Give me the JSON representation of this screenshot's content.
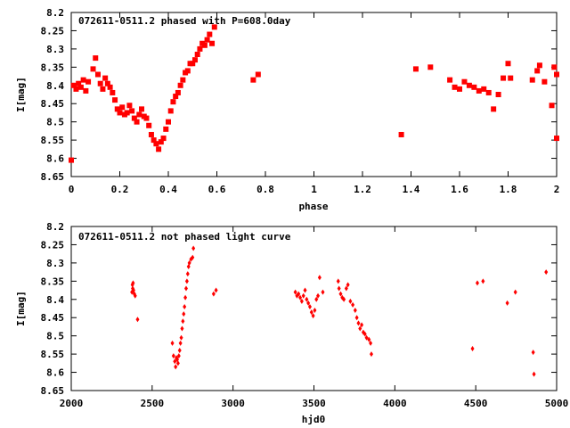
{
  "chart_data": [
    {
      "type": "scatter",
      "title": "072611-0511.2 phased with P=608.0day",
      "xlabel": "phase",
      "ylabel": "I[mag]",
      "xlim": [
        0,
        2
      ],
      "ylim": [
        8.65,
        8.2
      ],
      "y_inverted": true,
      "xticks": [
        "0",
        "0.2",
        "0.4",
        "0.6",
        "0.8",
        "1",
        "1.2",
        "1.4",
        "1.6",
        "1.8",
        "2"
      ],
      "yticks": [
        "8.2",
        "8.25",
        "8.3",
        "8.35",
        "8.4",
        "8.45",
        "8.5",
        "8.55",
        "8.6",
        "8.65"
      ],
      "marker": "filled-square",
      "color": "#ff0000",
      "grid": false,
      "points": [
        [
          0.0,
          8.605
        ],
        [
          0.01,
          8.4
        ],
        [
          0.02,
          8.41
        ],
        [
          0.03,
          8.395
        ],
        [
          0.04,
          8.405
        ],
        [
          0.05,
          8.385
        ],
        [
          0.06,
          8.415
        ],
        [
          0.07,
          8.39
        ],
        [
          0.09,
          8.355
        ],
        [
          0.1,
          8.325
        ],
        [
          0.11,
          8.37
        ],
        [
          0.12,
          8.395
        ],
        [
          0.13,
          8.41
        ],
        [
          0.14,
          8.38
        ],
        [
          0.15,
          8.395
        ],
        [
          0.16,
          8.405
        ],
        [
          0.17,
          8.42
        ],
        [
          0.18,
          8.44
        ],
        [
          0.19,
          8.465
        ],
        [
          0.2,
          8.475
        ],
        [
          0.21,
          8.46
        ],
        [
          0.22,
          8.48
        ],
        [
          0.23,
          8.475
        ],
        [
          0.24,
          8.455
        ],
        [
          0.25,
          8.47
        ],
        [
          0.26,
          8.49
        ],
        [
          0.27,
          8.5
        ],
        [
          0.28,
          8.48
        ],
        [
          0.29,
          8.465
        ],
        [
          0.3,
          8.485
        ],
        [
          0.31,
          8.49
        ],
        [
          0.32,
          8.51
        ],
        [
          0.33,
          8.535
        ],
        [
          0.34,
          8.55
        ],
        [
          0.35,
          8.56
        ],
        [
          0.36,
          8.575
        ],
        [
          0.37,
          8.555
        ],
        [
          0.38,
          8.545
        ],
        [
          0.39,
          8.52
        ],
        [
          0.4,
          8.5
        ],
        [
          0.41,
          8.47
        ],
        [
          0.42,
          8.445
        ],
        [
          0.43,
          8.43
        ],
        [
          0.44,
          8.42
        ],
        [
          0.45,
          8.4
        ],
        [
          0.46,
          8.385
        ],
        [
          0.47,
          8.365
        ],
        [
          0.48,
          8.36
        ],
        [
          0.49,
          8.34
        ],
        [
          0.5,
          8.34
        ],
        [
          0.51,
          8.33
        ],
        [
          0.52,
          8.315
        ],
        [
          0.53,
          8.3
        ],
        [
          0.54,
          8.285
        ],
        [
          0.55,
          8.29
        ],
        [
          0.56,
          8.275
        ],
        [
          0.57,
          8.26
        ],
        [
          0.58,
          8.285
        ],
        [
          0.59,
          8.24
        ],
        [
          0.75,
          8.385
        ],
        [
          0.77,
          8.37
        ],
        [
          1.36,
          8.535
        ],
        [
          1.42,
          8.355
        ],
        [
          1.48,
          8.35
        ],
        [
          1.56,
          8.385
        ],
        [
          1.58,
          8.405
        ],
        [
          1.6,
          8.41
        ],
        [
          1.62,
          8.39
        ],
        [
          1.64,
          8.4
        ],
        [
          1.66,
          8.405
        ],
        [
          1.68,
          8.415
        ],
        [
          1.7,
          8.41
        ],
        [
          1.72,
          8.42
        ],
        [
          1.74,
          8.465
        ],
        [
          1.76,
          8.425
        ],
        [
          1.78,
          8.38
        ],
        [
          1.8,
          8.34
        ],
        [
          1.81,
          8.38
        ],
        [
          1.9,
          8.385
        ],
        [
          1.92,
          8.36
        ],
        [
          1.93,
          8.345
        ],
        [
          1.95,
          8.39
        ],
        [
          1.98,
          8.455
        ],
        [
          1.99,
          8.35
        ],
        [
          2.0,
          8.545
        ],
        [
          2.0,
          8.37
        ]
      ]
    },
    {
      "type": "scatter",
      "title": "072611-0511.2 not phased light curve",
      "xlabel": "hjd0",
      "ylabel": "I[mag]",
      "xlim": [
        2000,
        5000
      ],
      "ylim": [
        8.65,
        8.2
      ],
      "y_inverted": true,
      "xticks": [
        "2000",
        "2500",
        "3000",
        "3500",
        "4000",
        "4500",
        "5000"
      ],
      "yticks": [
        "8.2",
        "8.25",
        "8.3",
        "8.35",
        "8.4",
        "8.45",
        "8.5",
        "8.55",
        "8.6",
        "8.65"
      ],
      "marker": "diamond",
      "color": "#ff0000",
      "grid": false,
      "points": [
        [
          2375,
          8.38
        ],
        [
          2378,
          8.36
        ],
        [
          2380,
          8.37
        ],
        [
          2382,
          8.355
        ],
        [
          2385,
          8.375
        ],
        [
          2390,
          8.385
        ],
        [
          2395,
          8.39
        ],
        [
          2410,
          8.455
        ],
        [
          2625,
          8.52
        ],
        [
          2632,
          8.555
        ],
        [
          2640,
          8.57
        ],
        [
          2645,
          8.585
        ],
        [
          2650,
          8.56
        ],
        [
          2655,
          8.565
        ],
        [
          2660,
          8.575
        ],
        [
          2665,
          8.555
        ],
        [
          2670,
          8.54
        ],
        [
          2675,
          8.52
        ],
        [
          2680,
          8.505
        ],
        [
          2685,
          8.48
        ],
        [
          2690,
          8.46
        ],
        [
          2695,
          8.44
        ],
        [
          2700,
          8.42
        ],
        [
          2705,
          8.395
        ],
        [
          2710,
          8.37
        ],
        [
          2715,
          8.35
        ],
        [
          2720,
          8.33
        ],
        [
          2725,
          8.31
        ],
        [
          2730,
          8.3
        ],
        [
          2740,
          8.29
        ],
        [
          2750,
          8.285
        ],
        [
          2755,
          8.26
        ],
        [
          2880,
          8.385
        ],
        [
          2895,
          8.375
        ],
        [
          3385,
          8.38
        ],
        [
          3395,
          8.39
        ],
        [
          3405,
          8.385
        ],
        [
          3415,
          8.395
        ],
        [
          3425,
          8.405
        ],
        [
          3435,
          8.39
        ],
        [
          3445,
          8.375
        ],
        [
          3455,
          8.4
        ],
        [
          3465,
          8.41
        ],
        [
          3475,
          8.42
        ],
        [
          3485,
          8.435
        ],
        [
          3495,
          8.445
        ],
        [
          3505,
          8.43
        ],
        [
          3515,
          8.4
        ],
        [
          3525,
          8.39
        ],
        [
          3535,
          8.34
        ],
        [
          3555,
          8.38
        ],
        [
          3650,
          8.35
        ],
        [
          3655,
          8.37
        ],
        [
          3665,
          8.385
        ],
        [
          3675,
          8.395
        ],
        [
          3685,
          8.4
        ],
        [
          3700,
          8.37
        ],
        [
          3710,
          8.36
        ],
        [
          3725,
          8.405
        ],
        [
          3740,
          8.415
        ],
        [
          3755,
          8.43
        ],
        [
          3765,
          8.45
        ],
        [
          3775,
          8.465
        ],
        [
          3785,
          8.48
        ],
        [
          3795,
          8.47
        ],
        [
          3805,
          8.49
        ],
        [
          3815,
          8.495
        ],
        [
          3825,
          8.505
        ],
        [
          3840,
          8.51
        ],
        [
          3850,
          8.52
        ],
        [
          3855,
          8.55
        ],
        [
          4480,
          8.535
        ],
        [
          4510,
          8.355
        ],
        [
          4545,
          8.35
        ],
        [
          4695,
          8.41
        ],
        [
          4745,
          8.38
        ],
        [
          4855,
          8.545
        ],
        [
          4860,
          8.605
        ],
        [
          4935,
          8.325
        ]
      ]
    }
  ]
}
